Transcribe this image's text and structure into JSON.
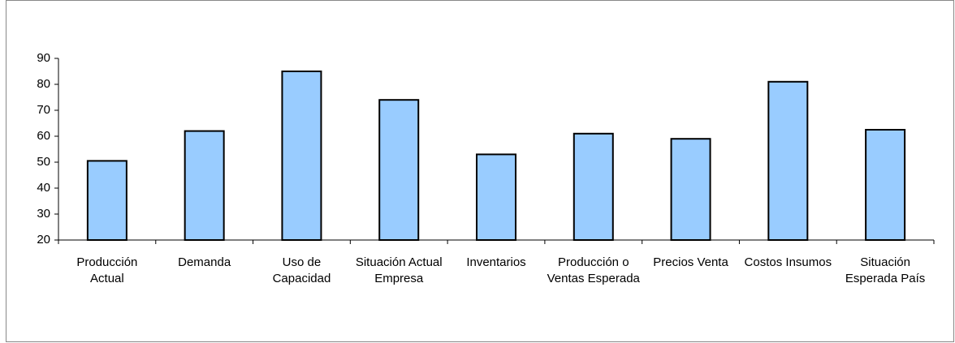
{
  "chart_data": {
    "type": "bar",
    "categories": [
      "Producción Actual",
      "Demanda",
      "Uso de Capacidad",
      "Situación Actual Empresa",
      "Inventarios",
      "Producción o Ventas Esperada",
      "Precios Venta",
      "Costos Insumos",
      "Situación Esperada País"
    ],
    "values": [
      50.5,
      62,
      85,
      74,
      53,
      61,
      59,
      81,
      62.5
    ],
    "color": "#99ccff",
    "ylim": [
      20,
      90
    ],
    "yticks": [
      20,
      30,
      40,
      50,
      60,
      70,
      80,
      90
    ],
    "grid": false
  }
}
